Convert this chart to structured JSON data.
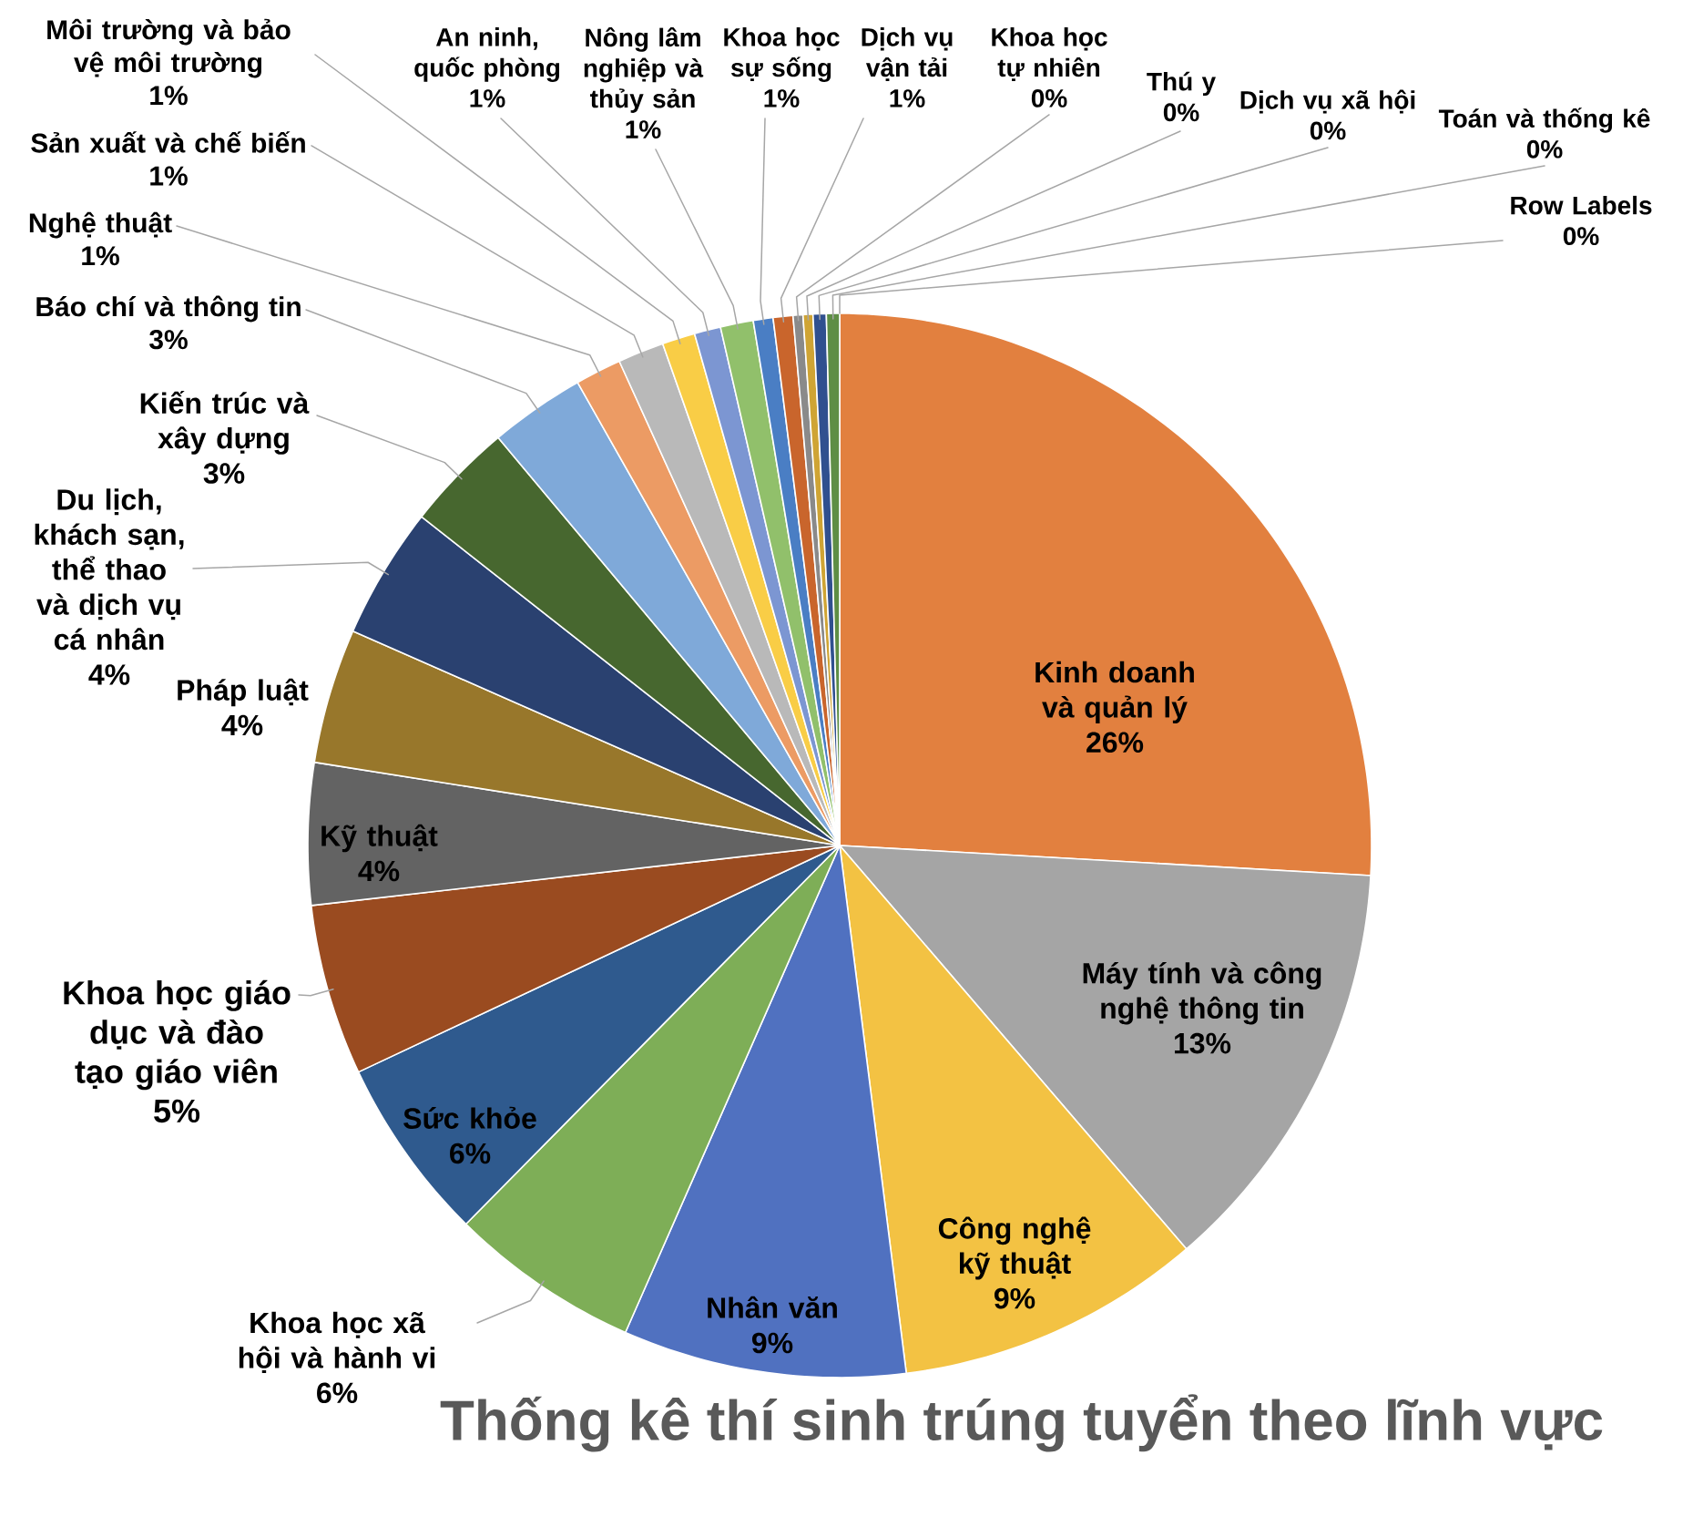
{
  "chart_data": {
    "type": "pie",
    "title": "Thống kê thí sinh trúng tuyển theo lĩnh vực",
    "categories": [
      "Row Labels",
      "Kinh doanh và quản lý",
      "Máy tính và công nghệ thông tin",
      "Công nghệ kỹ thuật",
      "Nhân văn",
      "Khoa học xã hội và hành vi",
      "Sức khỏe",
      "Khoa học giáo dục và đào tạo giáo viên",
      "Kỹ thuật",
      "Pháp luật",
      "Du lịch, khách sạn, thể thao và dịch vụ cá nhân",
      "Kiến trúc và xây dựng",
      "Báo chí và thông tin",
      "Nghệ thuật",
      "Sản xuất và chế biến",
      "Môi trường và bảo vệ môi trường",
      "An ninh, quốc phòng",
      "Nông lâm nghiệp và thủy sản",
      "Khoa học sự sống",
      "Dịch vụ vận tải",
      "Khoa học tự nhiên",
      "Thú y",
      "Dịch vụ xã hội",
      "Toán và thống kê"
    ],
    "values": [
      0,
      25.9,
      12.8,
      9.3,
      8.6,
      5.8,
      5.6,
      5.2,
      4.3,
      4.1,
      4.0,
      3.3,
      2.9,
      1.4,
      1.4,
      1.0,
      0.8,
      1.0,
      0.6,
      0.6,
      0.3,
      0.3,
      0.4,
      0.4
    ],
    "value_labels": [
      "0%",
      "26%",
      "13%",
      "9%",
      "9%",
      "6%",
      "6%",
      "5%",
      "4%",
      "4%",
      "4%",
      "3%",
      "3%",
      "1%",
      "1%",
      "1%",
      "1%",
      "1%",
      "1%",
      "1%",
      "0%",
      "0%",
      "0%",
      "0%"
    ],
    "colors": [
      "#4472c4",
      "#e2803f",
      "#a5a5a5",
      "#f3c243",
      "#5071c0",
      "#7eae57",
      "#2f5a8e",
      "#9a4b20",
      "#636363",
      "#98772b",
      "#2a4170",
      "#47672f",
      "#7fa9d9",
      "#ec9b64",
      "#b9b9b9",
      "#f9cd46",
      "#7c96d2",
      "#91c06b",
      "#4a7ec4",
      "#c9652c",
      "#8a8a8a",
      "#cfa434",
      "#30508f",
      "#5e8e45"
    ]
  }
}
